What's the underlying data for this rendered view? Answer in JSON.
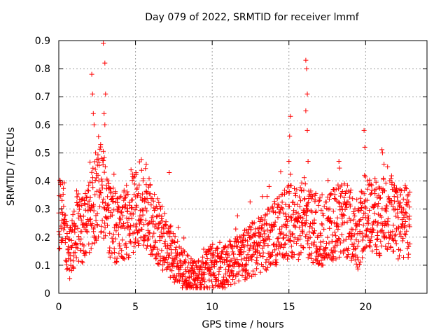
{
  "chart_data": {
    "type": "scatter",
    "title": "Day 079 of 2022, SRMTID for receiver lmmf",
    "xlabel": "GPS time / hours",
    "ylabel": "SRMTID / TECUs",
    "xlim": [
      0,
      24
    ],
    "ylim": [
      0,
      0.9
    ],
    "xticks": [
      0,
      5,
      10,
      15,
      20
    ],
    "yticks": [
      0,
      0.1,
      0.2,
      0.3,
      0.4,
      0.5,
      0.6,
      0.7,
      0.8,
      0.9
    ],
    "grid": true,
    "marker": "+",
    "color": "#ff0000",
    "trend": [
      [
        0.0,
        0.26
      ],
      [
        0.3,
        0.3
      ],
      [
        0.6,
        0.14
      ],
      [
        0.9,
        0.16
      ],
      [
        1.2,
        0.25
      ],
      [
        1.6,
        0.22
      ],
      [
        2.0,
        0.27
      ],
      [
        2.4,
        0.32
      ],
      [
        2.8,
        0.38
      ],
      [
        3.2,
        0.27
      ],
      [
        3.6,
        0.24
      ],
      [
        4.0,
        0.22
      ],
      [
        4.5,
        0.26
      ],
      [
        5.0,
        0.3
      ],
      [
        5.5,
        0.33
      ],
      [
        6.0,
        0.26
      ],
      [
        6.5,
        0.22
      ],
      [
        7.0,
        0.17
      ],
      [
        7.5,
        0.13
      ],
      [
        8.0,
        0.09
      ],
      [
        8.5,
        0.07
      ],
      [
        9.0,
        0.05
      ],
      [
        9.5,
        0.07
      ],
      [
        10.0,
        0.1
      ],
      [
        10.5,
        0.08
      ],
      [
        11.0,
        0.1
      ],
      [
        11.5,
        0.12
      ],
      [
        12.0,
        0.13
      ],
      [
        12.5,
        0.15
      ],
      [
        13.0,
        0.17
      ],
      [
        13.5,
        0.19
      ],
      [
        14.0,
        0.21
      ],
      [
        14.5,
        0.23
      ],
      [
        15.0,
        0.26
      ],
      [
        15.5,
        0.24
      ],
      [
        16.0,
        0.28
      ],
      [
        16.5,
        0.23
      ],
      [
        17.0,
        0.22
      ],
      [
        17.5,
        0.22
      ],
      [
        18.0,
        0.25
      ],
      [
        18.5,
        0.26
      ],
      [
        19.0,
        0.25
      ],
      [
        19.5,
        0.2
      ],
      [
        20.0,
        0.31
      ],
      [
        20.5,
        0.28
      ],
      [
        21.0,
        0.26
      ],
      [
        21.5,
        0.31
      ],
      [
        22.0,
        0.25
      ],
      [
        22.5,
        0.25
      ],
      [
        22.9,
        0.26
      ]
    ],
    "spikes": [
      [
        2.15,
        0.78
      ],
      [
        2.2,
        0.71
      ],
      [
        2.25,
        0.64
      ],
      [
        2.3,
        0.6
      ],
      [
        2.4,
        0.5
      ],
      [
        2.9,
        0.89
      ],
      [
        3.0,
        0.82
      ],
      [
        3.05,
        0.71
      ],
      [
        3.0,
        0.6
      ],
      [
        2.95,
        0.64
      ],
      [
        7.2,
        0.43
      ],
      [
        5.7,
        0.46
      ],
      [
        15.1,
        0.63
      ],
      [
        15.05,
        0.56
      ],
      [
        15.0,
        0.47
      ],
      [
        16.1,
        0.83
      ],
      [
        16.15,
        0.8
      ],
      [
        16.2,
        0.71
      ],
      [
        16.1,
        0.65
      ],
      [
        16.2,
        0.58
      ],
      [
        16.25,
        0.47
      ],
      [
        19.9,
        0.58
      ],
      [
        19.95,
        0.52
      ],
      [
        21.1,
        0.5
      ],
      [
        21.2,
        0.46
      ]
    ]
  }
}
